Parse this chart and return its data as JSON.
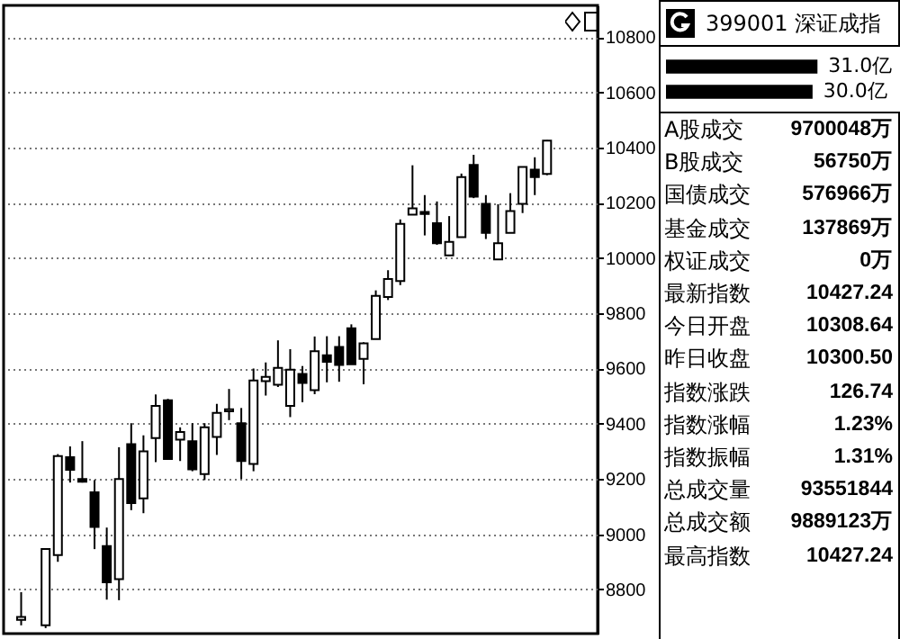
{
  "chart_data": [
    {
      "type": "candlestick",
      "categories": [
        null,
        null,
        null,
        null,
        null,
        null,
        null,
        null,
        null,
        null,
        null,
        null,
        null,
        null,
        null,
        null,
        null,
        null,
        null,
        null,
        null,
        null,
        null,
        null,
        null,
        null,
        null,
        null,
        null,
        null,
        null,
        null,
        null,
        null,
        null,
        null,
        null,
        null,
        null,
        null,
        null,
        null,
        null,
        null
      ],
      "ohlc": [
        [
          8690,
          8790,
          8670,
          8700
        ],
        null,
        [
          8670,
          8946,
          8660,
          8946
        ],
        [
          8924,
          9290,
          8900,
          9283
        ],
        [
          9279,
          9318,
          9187,
          9233
        ],
        [
          9200,
          9337,
          9187,
          9190
        ],
        [
          9152,
          9196,
          8946,
          9026
        ],
        [
          8957,
          9024,
          8763,
          8826
        ],
        [
          8837,
          9315,
          8761,
          9200
        ],
        [
          9326,
          9402,
          9087,
          9113
        ],
        [
          9130,
          9358,
          9076,
          9300
        ],
        [
          9348,
          9506,
          9261,
          9465
        ],
        [
          9485,
          9490,
          9270,
          9272
        ],
        [
          9342,
          9387,
          9265,
          9370
        ],
        [
          9337,
          9402,
          9228,
          9235
        ],
        [
          9218,
          9402,
          9196,
          9387
        ],
        [
          9352,
          9472,
          9287,
          9439
        ],
        [
          9445,
          9526,
          9413,
          9452
        ],
        [
          9402,
          9457,
          9200,
          9265
        ],
        [
          9254,
          9600,
          9228,
          9557
        ],
        [
          9554,
          9622,
          9502,
          9570
        ],
        [
          9541,
          9702,
          9533,
          9602
        ],
        [
          9465,
          9670,
          9424,
          9596
        ],
        [
          9580,
          9609,
          9478,
          9548
        ],
        [
          9522,
          9716,
          9507,
          9663
        ],
        [
          9648,
          9717,
          9550,
          9624
        ],
        [
          9678,
          9717,
          9552,
          9613
        ],
        [
          9746,
          9760,
          9615,
          9615
        ],
        [
          9635,
          9695,
          9543,
          9691
        ],
        [
          9707,
          9883,
          9707,
          9863
        ],
        [
          9859,
          9956,
          9848,
          9924
        ],
        [
          9917,
          10140,
          9902,
          10124
        ],
        [
          10157,
          10336,
          10157,
          10180
        ],
        [
          10167,
          10228,
          10082,
          10160
        ],
        [
          10126,
          10205,
          10048,
          10054
        ],
        [
          10010,
          10152,
          10008,
          10059
        ],
        [
          10076,
          10306,
          10076,
          10293
        ],
        [
          10337,
          10374,
          10217,
          10222
        ],
        [
          10196,
          10228,
          10069,
          10091
        ],
        [
          9995,
          10195,
          9995,
          10054
        ],
        [
          10091,
          10235,
          10091,
          10170
        ],
        [
          10196,
          10330,
          10163,
          10330
        ],
        [
          10320,
          10365,
          10228,
          10293
        ],
        [
          10305,
          10427,
          10300,
          10425
        ]
      ],
      "ylim": [
        8640,
        10915
      ],
      "yticks": [
        8800,
        9000,
        9200,
        9400,
        9600,
        9800,
        10000,
        10200,
        10400,
        10600,
        10800
      ],
      "grid": "y",
      "line_style": "dotted"
    },
    {
      "type": "bar",
      "orientation": "horizontal",
      "title": "399001 深证成指",
      "categories": [
        null,
        null
      ],
      "values": [
        31.0,
        30.0
      ],
      "value_labels": [
        "31.0亿",
        "30.0亿"
      ],
      "color": "#000000",
      "tick_labels": false
    },
    {
      "type": "other",
      "annotations": [
        "A股成交",
        "9700048万",
        "B股成交",
        "56750万",
        "国债成交",
        "576966万",
        "基金成交",
        "137869万",
        "权证成交",
        "0万",
        "最新指数",
        "10427.24",
        "今日开盘",
        "10308.64",
        "昨日收盘",
        "10300.50",
        "指数涨跌",
        "126.74",
        "指数涨幅",
        "1.23%",
        "指数振幅",
        "1.31%",
        "总成交量",
        "93551844",
        "总成交额",
        "9889123万",
        "最高指数",
        "10427.24"
      ]
    }
  ]
}
